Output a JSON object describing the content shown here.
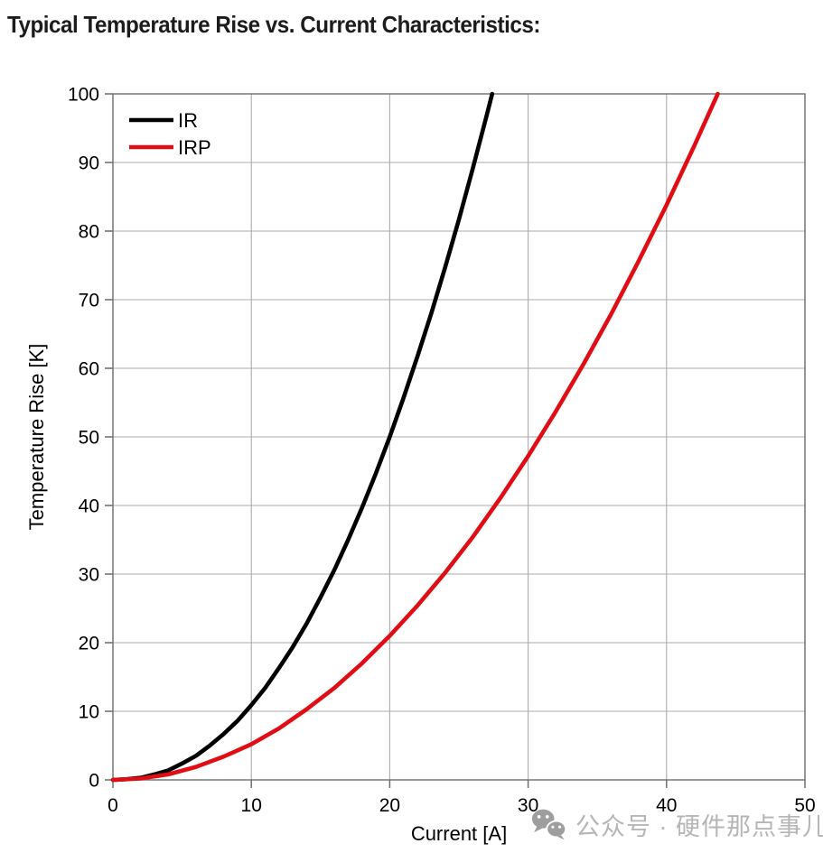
{
  "title": "Typical Temperature Rise vs. Current Characteristics:",
  "watermark": {
    "icon": "wechat-icon",
    "text": "公众号 · 硬件那点事儿"
  },
  "chart_data": {
    "type": "line",
    "title": "Typical Temperature Rise vs. Current Characteristics:",
    "xlabel": "Current [A]",
    "ylabel": "Temperature Rise [K]",
    "xlim": [
      0,
      50
    ],
    "ylim": [
      0,
      100
    ],
    "x_ticks": [
      0,
      10,
      20,
      30,
      40,
      50
    ],
    "y_ticks": [
      0,
      10,
      20,
      30,
      40,
      50,
      60,
      70,
      80,
      90,
      100
    ],
    "grid": true,
    "legend_position": "top-left-inside",
    "colors": {
      "grid": "#ababab",
      "frame": "#6e6e6e",
      "ir": "#000000",
      "irp": "#e00d15"
    },
    "series": [
      {
        "name": "IR",
        "color": "#000000",
        "points": [
          [
            0,
            0
          ],
          [
            1,
            0.1
          ],
          [
            2,
            0.3
          ],
          [
            3,
            0.8
          ],
          [
            4,
            1.4
          ],
          [
            5,
            2.4
          ],
          [
            6,
            3.5
          ],
          [
            7,
            5.0
          ],
          [
            8,
            6.7
          ],
          [
            9,
            8.6
          ],
          [
            10,
            10.9
          ],
          [
            11,
            13.4
          ],
          [
            12,
            16.3
          ],
          [
            13,
            19.4
          ],
          [
            14,
            22.8
          ],
          [
            15,
            26.6
          ],
          [
            16,
            30.6
          ],
          [
            17,
            35.0
          ],
          [
            18,
            39.7
          ],
          [
            19,
            44.7
          ],
          [
            20,
            50.0
          ],
          [
            21,
            55.7
          ],
          [
            22,
            61.7
          ],
          [
            23,
            68.0
          ],
          [
            24,
            74.7
          ],
          [
            25,
            81.7
          ],
          [
            26,
            89.1
          ],
          [
            27,
            96.8
          ],
          [
            27.4,
            100
          ]
        ]
      },
      {
        "name": "IRP",
        "color": "#e00d15",
        "points": [
          [
            0,
            0
          ],
          [
            2,
            0.2
          ],
          [
            4,
            0.8
          ],
          [
            6,
            1.9
          ],
          [
            8,
            3.4
          ],
          [
            10,
            5.2
          ],
          [
            12,
            7.5
          ],
          [
            14,
            10.3
          ],
          [
            16,
            13.4
          ],
          [
            18,
            17.0
          ],
          [
            20,
            21.0
          ],
          [
            22,
            25.4
          ],
          [
            24,
            30.2
          ],
          [
            26,
            35.4
          ],
          [
            28,
            41.1
          ],
          [
            30,
            47.2
          ],
          [
            32,
            53.7
          ],
          [
            34,
            60.6
          ],
          [
            36,
            67.9
          ],
          [
            38,
            75.7
          ],
          [
            40,
            83.8
          ],
          [
            42,
            92.4
          ],
          [
            43.7,
            100
          ]
        ]
      }
    ]
  }
}
